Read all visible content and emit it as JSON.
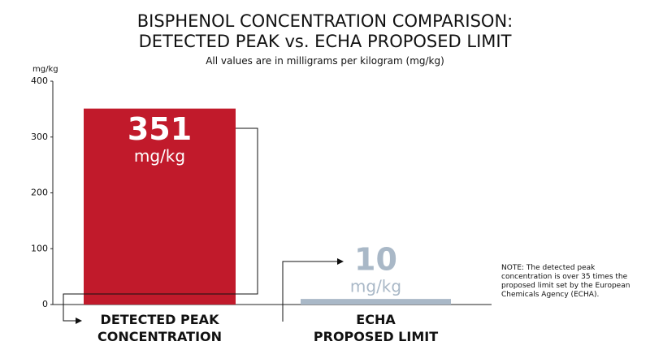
{
  "chart_data": {
    "type": "bar",
    "title": "BISPHENOL CONCENTRATION COMPARISON:\nDETECTED PEAK vs. ECHA PROPOSED LIMIT",
    "subtitle": "All values are in milligrams per kilogram (mg/kg)",
    "y_axis_label": "mg/kg",
    "unit_label": "mg/kg",
    "categories": [
      "DETECTED PEAK\nCONCENTRATION",
      "ECHA\nPROPOSED LIMIT"
    ],
    "values": [
      351,
      10
    ],
    "colors": [
      "#c11a2b",
      "#a9b8c7"
    ],
    "value_label_colors": [
      "#ffffff",
      "#a9b8c7"
    ],
    "ylim": [
      0,
      400
    ],
    "yticks": [
      0,
      100,
      200,
      300,
      400
    ],
    "note": "NOTE: The detected peak concentration is over 35 times the proposed limit set by the European Chemicals Agency (ECHA)."
  }
}
